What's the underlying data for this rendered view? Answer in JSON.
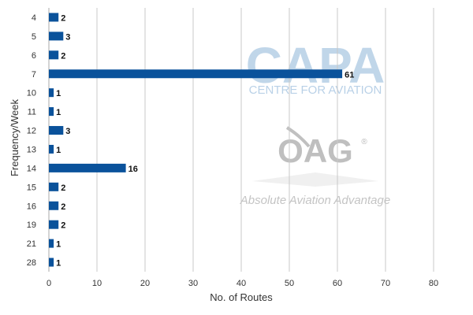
{
  "watermarks": {
    "capa_logo": "CAPA",
    "capa_subtitle": "CENTRE FOR AVIATION",
    "oag_logo": "OAG",
    "oag_registered": "®",
    "oag_tagline": "Absolute Aviation Advantage"
  },
  "colors": {
    "bar": "#0a529b",
    "grid": "#c8c8c8",
    "axis_text": "#333333",
    "label_text": "#111111",
    "capa_watermark": "#b6cfe6",
    "oag_watermark": "#b9b9b9"
  },
  "chart_data": {
    "type": "bar",
    "orientation": "horizontal",
    "categories": [
      "4",
      "5",
      "6",
      "7",
      "10",
      "11",
      "12",
      "13",
      "14",
      "15",
      "16",
      "19",
      "21",
      "28"
    ],
    "values": [
      2,
      3,
      2,
      61,
      1,
      1,
      3,
      1,
      16,
      2,
      2,
      2,
      1,
      1
    ],
    "data_labels": [
      "2",
      "3",
      "2",
      "61",
      "1",
      "1",
      "3",
      "1",
      "16",
      "2",
      "2",
      "2",
      "1",
      "1"
    ],
    "xlabel": "No. of Routes",
    "ylabel": "Frequency/Week",
    "xlim": [
      0,
      80
    ],
    "xticks": [
      0,
      10,
      20,
      30,
      40,
      50,
      60,
      70,
      80
    ],
    "grid": true,
    "legend": "none"
  }
}
